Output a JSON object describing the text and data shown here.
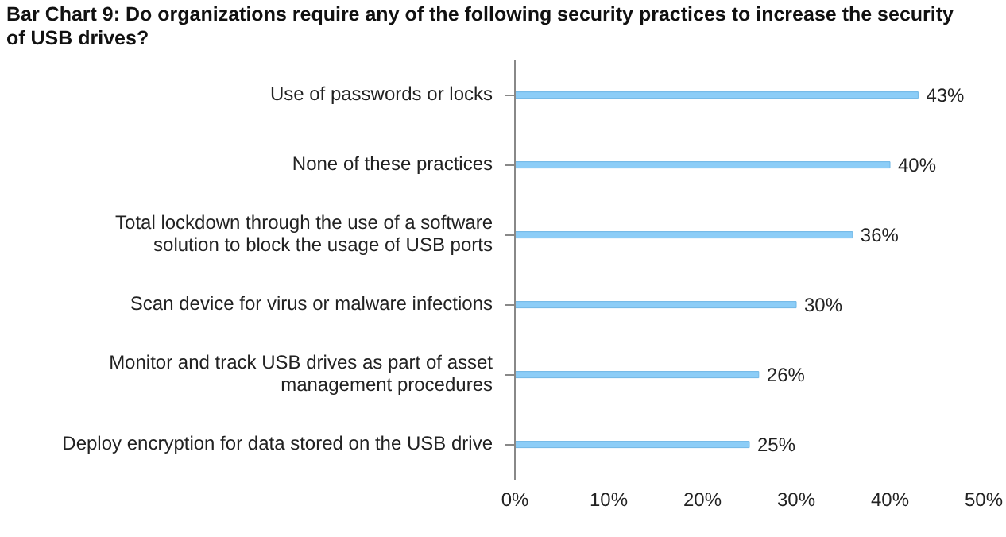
{
  "chart_data": {
    "type": "bar",
    "orientation": "horizontal",
    "title": "Bar Chart 9: Do organizations require any of the following security practices to increase the security of USB drives?",
    "categories": [
      "Use of passwords or locks",
      "None of these practices",
      "Total lockdown through the use of a software solution to block the usage of USB ports",
      "Scan device for virus or malware infections",
      "Monitor and track USB drives as part of asset management procedures",
      "Deploy encryption for data stored on the USB drive"
    ],
    "values": [
      43,
      40,
      36,
      30,
      26,
      25
    ],
    "value_labels": [
      "43%",
      "40%",
      "36%",
      "30%",
      "26%",
      "25%"
    ],
    "color": "#8ccdf7",
    "xlim": [
      0,
      50
    ],
    "xticks": [
      {
        "value": 0,
        "label": "0%"
      },
      {
        "value": 10,
        "label": "10%"
      },
      {
        "value": 20,
        "label": "20%"
      },
      {
        "value": 30,
        "label": "30%"
      },
      {
        "value": 40,
        "label": "40%"
      },
      {
        "value": 50,
        "label": "50%"
      }
    ],
    "grid": false,
    "legend": false
  }
}
